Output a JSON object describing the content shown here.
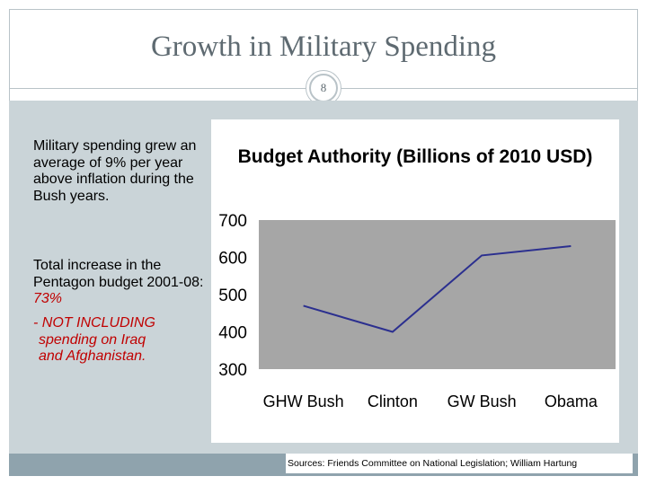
{
  "slide": {
    "title": "Growth in Military Spending",
    "number": "8"
  },
  "text": {
    "para1": "Military spending grew an average of 9% per year above inflation during the Bush years.",
    "para2_black": "Total increase in the Pentagon budget 2001-08: ",
    "para2_red": "73%",
    "para3_line1": "- NOT INCLUDING",
    "para3_line2": "spending on Iraq",
    "para3_line3": "and Afghanistan."
  },
  "sources": "Sources: Friends Committee on National Legislation; William Hartung",
  "colors": {
    "plot_bg": "#a6a6a6",
    "line": "#2b2f8f",
    "emphasis": "#c00000"
  },
  "chart_data": {
    "type": "line",
    "title": "Budget Authority (Billions of 2010 USD)",
    "categories": [
      "GHW Bush",
      "Clinton",
      "GW Bush",
      "Obama"
    ],
    "values": [
      470,
      400,
      605,
      630
    ],
    "ylim": [
      300,
      700
    ],
    "yticks": [
      300,
      400,
      500,
      600,
      700
    ],
    "xlabel": "",
    "ylabel": "",
    "grid": false,
    "legend": "none"
  }
}
